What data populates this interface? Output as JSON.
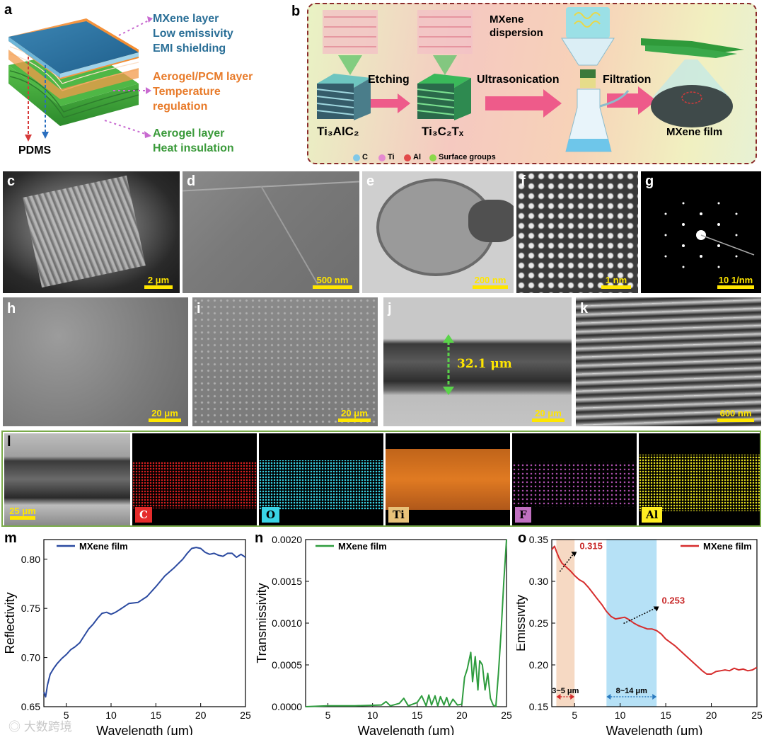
{
  "panel_a": {
    "label": "a",
    "mxene_title": "MXene layer",
    "mxene_lines": [
      "Low emissivity",
      "EMI shielding"
    ],
    "pcm_title": "Aerogel/PCM layer",
    "pcm_lines": [
      "Temperature",
      "regulation"
    ],
    "aerogel_title": "Aerogel layer",
    "aerogel_lines": [
      "Heat insulation"
    ],
    "pdms": "PDMS",
    "colors": {
      "mxene": "#2a6f97",
      "pcm": "#f0843c",
      "aerogel": "#3a9a3a"
    }
  },
  "panel_b": {
    "label": "b",
    "max_phase": "Ti₃AlC₂",
    "etched_phase": "Ti₃C₂Tₓ",
    "step_etching": "Etching",
    "step_ultrasonication": "Ultrasonication",
    "step_filtration": "Filtration",
    "dispersion_label": [
      "MXene",
      "dispersion"
    ],
    "film_label": "MXene film",
    "legend": [
      {
        "label": "C",
        "color": "#7fc8e8"
      },
      {
        "label": "Ti",
        "color": "#e58ad0"
      },
      {
        "label": "Al",
        "color": "#e24a4a"
      },
      {
        "label": "Surface groups",
        "color": "#8bd84a"
      }
    ]
  },
  "micrographs": [
    {
      "label": "c",
      "scale": "2 μm"
    },
    {
      "label": "d",
      "scale": "500 nm"
    },
    {
      "label": "e",
      "scale": "200 nm"
    },
    {
      "label": "f",
      "scale": "1 nm"
    },
    {
      "label": "g",
      "scale": "10 1/nm"
    },
    {
      "label": "h",
      "scale": "20 μm"
    },
    {
      "label": "i",
      "scale": "20 μm"
    },
    {
      "label": "j",
      "scale": "20 μm",
      "thickness": "32.1 μm"
    },
    {
      "label": "k",
      "scale": "600 nm"
    }
  ],
  "panel_l": {
    "label": "l",
    "scale": "25 μm",
    "elements": [
      {
        "label": "C",
        "color": "#e52b2b",
        "text_color": "#ffffff"
      },
      {
        "label": "O",
        "color": "#3ad4e6",
        "text_color": "#000000"
      },
      {
        "label": "Ti",
        "color": "#e8c27a",
        "text_color": "#000000"
      },
      {
        "label": "F",
        "color": "#c070c0",
        "text_color": "#000000"
      },
      {
        "label": "Al",
        "color": "#ffee22",
        "text_color": "#000000"
      }
    ]
  },
  "watermark": "大数跨境",
  "chart_data": [
    {
      "panel": "m",
      "type": "line",
      "xlabel": "Wavelength (μm)",
      "ylabel": "Reflectivity",
      "xlim": [
        2.5,
        25
      ],
      "ylim": [
        0.65,
        0.82
      ],
      "xticks": [
        5,
        10,
        15,
        20,
        25
      ],
      "yticks": [
        0.65,
        0.7,
        0.75,
        0.8
      ],
      "ytick_labels": [
        "0.65",
        "0.70",
        "0.75",
        "0.80"
      ],
      "color": "#2b4aa0",
      "series": [
        {
          "name": "MXene film",
          "x": [
            2.5,
            2.7,
            2.9,
            3.2,
            3.6,
            4.0,
            4.5,
            5.0,
            5.5,
            6.0,
            6.5,
            7.0,
            7.5,
            8.0,
            8.5,
            9.0,
            9.5,
            10.0,
            10.5,
            11.0,
            11.5,
            12.0,
            13.0,
            14.0,
            15.0,
            16.0,
            17.0,
            18.0,
            18.5,
            19.0,
            19.5,
            20.0,
            20.5,
            21.0,
            21.5,
            22.0,
            22.5,
            23.0,
            23.5,
            24.0,
            24.5,
            25.0
          ],
          "values": [
            0.665,
            0.66,
            0.672,
            0.683,
            0.689,
            0.694,
            0.699,
            0.703,
            0.708,
            0.711,
            0.715,
            0.722,
            0.729,
            0.734,
            0.74,
            0.745,
            0.746,
            0.744,
            0.746,
            0.749,
            0.752,
            0.755,
            0.756,
            0.762,
            0.772,
            0.783,
            0.791,
            0.8,
            0.806,
            0.811,
            0.812,
            0.811,
            0.807,
            0.805,
            0.806,
            0.804,
            0.803,
            0.806,
            0.806,
            0.802,
            0.805,
            0.802
          ]
        }
      ]
    },
    {
      "panel": "n",
      "type": "line",
      "xlabel": "Wavelength (μm)",
      "ylabel": "Transmissivity",
      "xlim": [
        2.5,
        25
      ],
      "ylim": [
        0,
        0.002
      ],
      "xticks": [
        5,
        10,
        15,
        20,
        25
      ],
      "yticks": [
        0,
        0.0005,
        0.001,
        0.0015,
        0.002
      ],
      "ytick_labels": [
        "0.0000",
        "0.0005",
        "0.0010",
        "0.0015",
        "0.0020"
      ],
      "color": "#2e9c3e",
      "series": [
        {
          "name": "MXene film",
          "x": [
            2.5,
            5,
            8,
            11,
            11.5,
            12,
            13,
            13.5,
            14,
            15,
            15.5,
            16,
            16.3,
            16.6,
            17,
            17.3,
            17.6,
            18,
            18.3,
            18.6,
            19,
            19.5,
            20,
            20.3,
            20.6,
            21,
            21.2,
            21.5,
            21.8,
            22,
            22.3,
            22.6,
            22.9,
            23.2,
            23.5,
            23.8,
            24.1,
            24.4,
            24.7,
            25
          ],
          "values": [
            0,
            1e-05,
            1e-05,
            2e-05,
            6e-05,
            1e-05,
            4e-05,
            0.0001,
            1e-05,
            5e-05,
            0.00013,
            1e-05,
            0.00014,
            2e-05,
            0.00013,
            1e-05,
            0.00012,
            2e-05,
            0.00011,
            1e-05,
            9e-05,
            2e-05,
            3e-05,
            0.00035,
            0.00045,
            0.00065,
            0.0003,
            0.0006,
            0.0002,
            0.00055,
            0.0005,
            0.0002,
            0.0004,
            0.0001,
            2e-05,
            0.0,
            0.0004,
            0.0009,
            0.0015,
            0.002
          ]
        }
      ]
    },
    {
      "panel": "o",
      "type": "line",
      "xlabel": "Wavelength (μm)",
      "ylabel": "Emissivity",
      "xlim": [
        2.5,
        25
      ],
      "ylim": [
        0.15,
        0.35
      ],
      "xticks": [
        5,
        10,
        15,
        20,
        25
      ],
      "yticks": [
        0.15,
        0.2,
        0.25,
        0.3,
        0.35
      ],
      "ytick_labels": [
        "0.15",
        "0.20",
        "0.25",
        "0.30",
        "0.35"
      ],
      "color": "#d62d2d",
      "bands": [
        {
          "from": 3,
          "to": 5,
          "label": "3~5 μm",
          "color": "#f5d2b8",
          "arrow_color": "#d62d2d"
        },
        {
          "from": 8.5,
          "to": 14,
          "label": "8~14 μm",
          "color": "#a9dcf5",
          "arrow_color": "#2a7abf"
        }
      ],
      "annotations": [
        {
          "text": "0.315",
          "x": 4,
          "y": 0.315
        },
        {
          "text": "0.253",
          "x": 11,
          "y": 0.253
        }
      ],
      "series": [
        {
          "name": "MXene film",
          "x": [
            2.5,
            2.8,
            3.0,
            3.3,
            3.6,
            4.0,
            4.5,
            5.0,
            5.5,
            6.0,
            6.5,
            7.0,
            7.5,
            8.0,
            8.5,
            9.0,
            9.5,
            10.0,
            10.5,
            11.0,
            11.5,
            12.0,
            12.5,
            13.0,
            13.5,
            14.0,
            14.5,
            15.0,
            16.0,
            17.0,
            18.0,
            19.0,
            19.5,
            20.0,
            20.5,
            21.0,
            21.5,
            22.0,
            22.5,
            23.0,
            23.5,
            24.0,
            24.5,
            25.0
          ],
          "values": [
            0.338,
            0.342,
            0.336,
            0.328,
            0.322,
            0.318,
            0.313,
            0.307,
            0.302,
            0.299,
            0.293,
            0.286,
            0.279,
            0.272,
            0.264,
            0.258,
            0.255,
            0.256,
            0.257,
            0.254,
            0.25,
            0.247,
            0.245,
            0.243,
            0.243,
            0.241,
            0.237,
            0.231,
            0.223,
            0.213,
            0.203,
            0.193,
            0.189,
            0.189,
            0.192,
            0.193,
            0.194,
            0.193,
            0.196,
            0.194,
            0.195,
            0.193,
            0.194,
            0.197
          ]
        }
      ]
    }
  ]
}
